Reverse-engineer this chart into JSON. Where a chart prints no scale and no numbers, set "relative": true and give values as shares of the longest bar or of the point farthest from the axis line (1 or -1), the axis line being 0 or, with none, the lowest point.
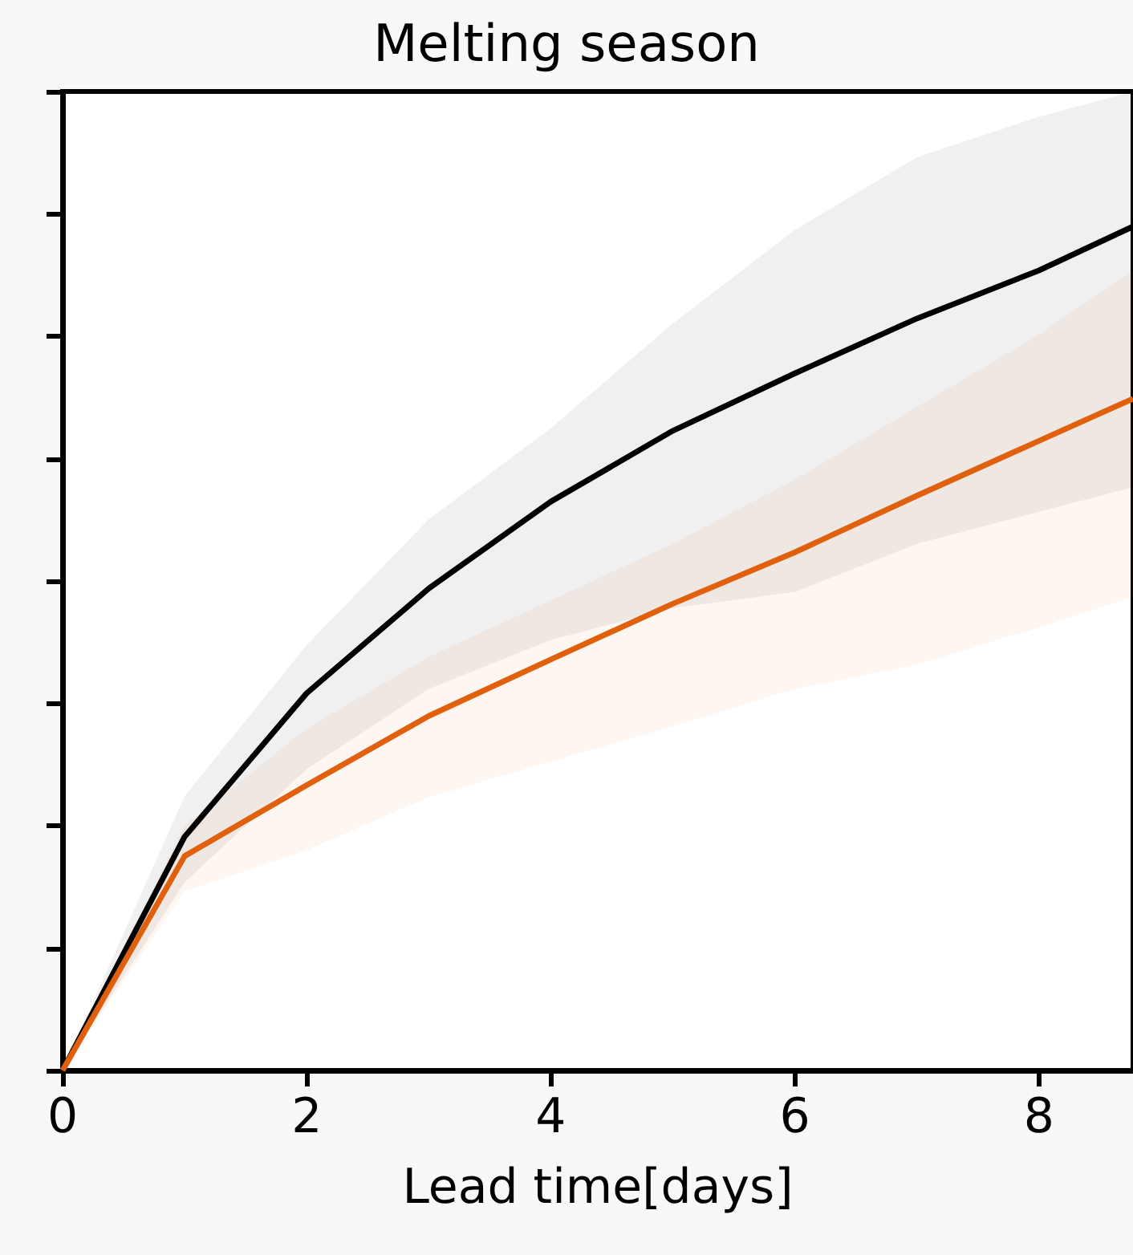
{
  "chart_data": {
    "type": "line",
    "title": "Melting season",
    "xlabel": "Lead time[days]",
    "relative": true,
    "x": [
      0,
      1,
      2,
      3,
      4,
      5,
      6,
      7,
      8,
      8.77
    ],
    "xlim": [
      0,
      8.77
    ],
    "xticks": [
      0,
      2,
      4,
      6,
      8
    ],
    "grid": false,
    "marker": "none",
    "line_style": "solid",
    "series": [
      {
        "color": "#000000",
        "values": [
          0,
          0.277,
          0.447,
          0.571,
          0.674,
          0.758,
          0.826,
          0.891,
          0.948,
          1
        ],
        "lower": [
          0,
          0.223,
          0.357,
          0.452,
          0.51,
          0.548,
          0.567,
          0.624,
          0.662,
          0.691
        ],
        "upper": [
          0,
          0.325,
          0.504,
          0.653,
          0.761,
          0.885,
          0.996,
          1.082,
          1.13,
          1.16
        ]
      },
      {
        "color": "#e0600e",
        "values": [
          0,
          0.254,
          0.338,
          0.42,
          0.487,
          0.553,
          0.614,
          0.681,
          0.746,
          0.796
        ],
        "lower": [
          0,
          0.212,
          0.261,
          0.324,
          0.366,
          0.408,
          0.452,
          0.481,
          0.525,
          0.561
        ],
        "upper": [
          0,
          0.29,
          0.405,
          0.49,
          0.557,
          0.624,
          0.7,
          0.786,
          0.872,
          0.948
        ]
      }
    ]
  }
}
